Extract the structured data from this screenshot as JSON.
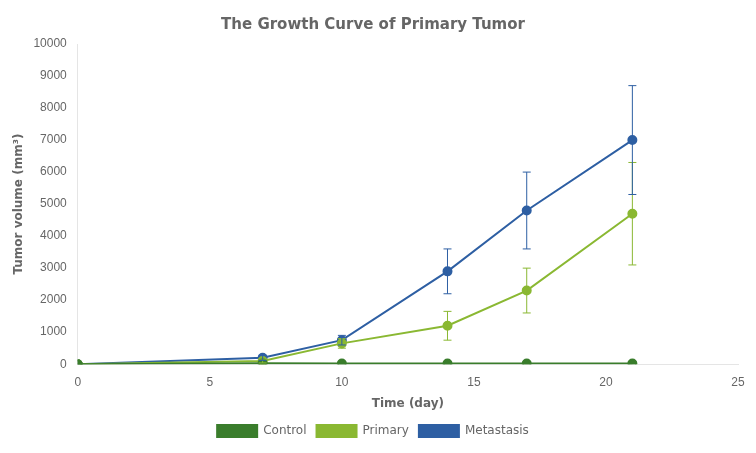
{
  "chart_data": {
    "type": "line",
    "title": "The Growth Curve of Primary Tumor",
    "x_label": "Time (day)",
    "y_label": "Tumor volume (mm³)",
    "x": [
      0,
      7,
      10,
      14,
      17,
      21
    ],
    "series": [
      {
        "name": "Control",
        "color": "#3a7d2c",
        "marker": "circle",
        "line_style": "solid",
        "values": [
          0,
          30,
          20,
          20,
          20,
          20
        ],
        "errors": [
          0,
          15,
          10,
          10,
          10,
          10
        ]
      },
      {
        "name": "Primary",
        "color": "#8ab832",
        "marker": "circle",
        "line_style": "solid",
        "values": [
          0,
          100,
          650,
          1200,
          2300,
          4700
        ],
        "errors": [
          0,
          60,
          150,
          450,
          700,
          1600
        ]
      },
      {
        "name": "Metastasis",
        "color": "#2e5fa3",
        "marker": "circle",
        "line_style": "solid",
        "values": [
          0,
          200,
          750,
          2900,
          4800,
          7000
        ],
        "errors": [
          0,
          80,
          150,
          700,
          1200,
          1700
        ]
      }
    ],
    "xlim": [
      0,
      25
    ],
    "xticks": [
      0,
      5,
      10,
      15,
      20,
      25
    ],
    "ylim": [
      0,
      10000
    ],
    "yticks": [
      0,
      1000,
      2000,
      3000,
      4000,
      5000,
      6000,
      7000,
      8000,
      9000,
      10000
    ],
    "grid": false,
    "legend": "bottom"
  }
}
